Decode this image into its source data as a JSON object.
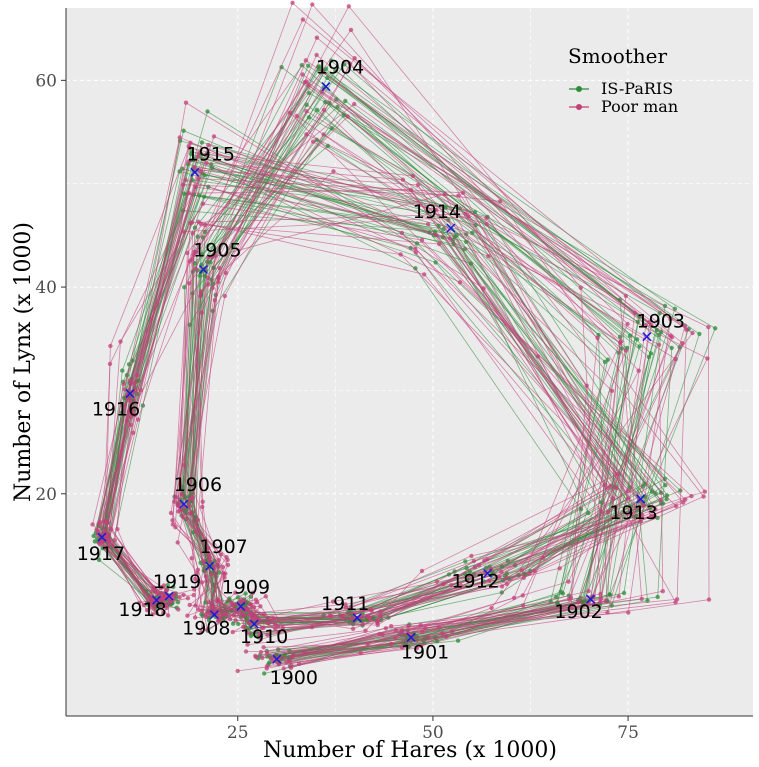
{
  "chart_data": {
    "type": "line",
    "xlabel": "Number of Hares (x 1000)",
    "ylabel": "Number of Lynx (x 1000)",
    "xlim": [
      3,
      91
    ],
    "ylim": [
      -1.5,
      67
    ],
    "xticks": [
      25,
      50,
      75
    ],
    "yticks": [
      20,
      40,
      60
    ],
    "grid": true,
    "legend": {
      "title": "Smoother",
      "position": "top-right"
    },
    "series": [
      {
        "name": "IS-PaRIS",
        "color": "#2e8b3a"
      },
      {
        "name": "Poor man",
        "color": "#c2407a"
      }
    ],
    "marker_color": "#1a1adb",
    "observations": [
      {
        "year": "1900",
        "x": 30.0,
        "y": 4.0
      },
      {
        "year": "1901",
        "x": 47.2,
        "y": 6.1
      },
      {
        "year": "1902",
        "x": 70.2,
        "y": 9.8
      },
      {
        "year": "1903",
        "x": 77.4,
        "y": 35.2
      },
      {
        "year": "1904",
        "x": 36.3,
        "y": 59.4
      },
      {
        "year": "1905",
        "x": 20.6,
        "y": 41.7
      },
      {
        "year": "1906",
        "x": 18.1,
        "y": 19.0
      },
      {
        "year": "1907",
        "x": 21.4,
        "y": 13.0
      },
      {
        "year": "1908",
        "x": 22.0,
        "y": 8.3
      },
      {
        "year": "1909",
        "x": 25.4,
        "y": 9.1
      },
      {
        "year": "1910",
        "x": 27.1,
        "y": 7.4
      },
      {
        "year": "1911",
        "x": 40.3,
        "y": 8.0
      },
      {
        "year": "1912",
        "x": 57.0,
        "y": 12.3
      },
      {
        "year": "1913",
        "x": 76.6,
        "y": 19.5
      },
      {
        "year": "1914",
        "x": 52.3,
        "y": 45.7
      },
      {
        "year": "1915",
        "x": 19.5,
        "y": 51.1
      },
      {
        "year": "1916",
        "x": 11.2,
        "y": 29.7
      },
      {
        "year": "1917",
        "x": 7.6,
        "y": 15.8
      },
      {
        "year": "1918",
        "x": 14.6,
        "y": 9.7
      },
      {
        "year": "1919",
        "x": 16.2,
        "y": 10.1
      }
    ]
  }
}
